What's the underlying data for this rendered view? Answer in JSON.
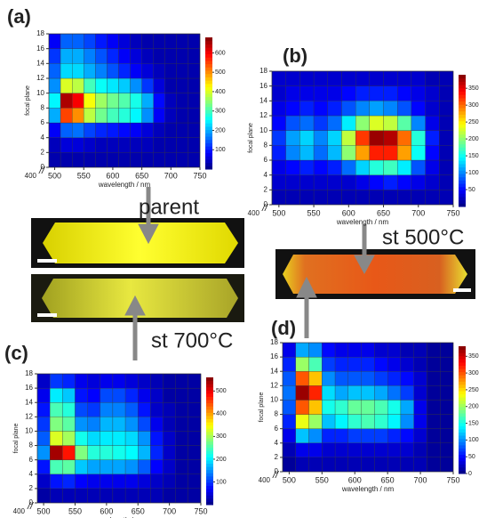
{
  "chart_data": [
    {
      "type": "heatmap",
      "panel": "(a)",
      "xlabel": "wavelength / nm",
      "ylabel": "focal plane",
      "colormap": "jet",
      "xlim": [
        490,
        750
      ],
      "xticks": [
        500,
        550,
        600,
        650,
        700,
        750
      ],
      "xbreak": 400,
      "ylim": [
        0,
        18
      ],
      "yticks": [
        0,
        2,
        4,
        6,
        8,
        10,
        12,
        14,
        16,
        18
      ],
      "clim": [
        0,
        680
      ],
      "cticks": [
        100,
        200,
        300,
        400,
        500,
        600
      ],
      "xbins": [
        490,
        510,
        530,
        550,
        570,
        590,
        610,
        630,
        650,
        670,
        690,
        710,
        730,
        750
      ],
      "ybins": [
        0,
        2,
        4,
        6,
        8,
        10,
        12,
        14,
        16,
        18
      ],
      "values": [
        [
          30,
          30,
          30,
          30,
          30,
          30,
          30,
          30,
          30,
          30,
          30,
          30,
          30
        ],
        [
          40,
          60,
          60,
          50,
          40,
          40,
          40,
          40,
          40,
          30,
          30,
          30,
          30
        ],
        [
          80,
          150,
          160,
          130,
          110,
          100,
          90,
          80,
          60,
          40,
          30,
          30,
          30
        ],
        [
          200,
          550,
          500,
          380,
          330,
          300,
          280,
          250,
          180,
          80,
          40,
          30,
          30
        ],
        [
          250,
          650,
          600,
          420,
          360,
          330,
          310,
          270,
          200,
          90,
          40,
          30,
          30
        ],
        [
          180,
          400,
          380,
          300,
          260,
          240,
          220,
          180,
          120,
          60,
          30,
          30,
          30
        ],
        [
          150,
          230,
          230,
          200,
          170,
          140,
          110,
          80,
          60,
          40,
          30,
          30,
          30
        ],
        [
          120,
          200,
          200,
          170,
          140,
          110,
          80,
          60,
          40,
          30,
          30,
          30,
          30
        ],
        [
          80,
          150,
          150,
          130,
          100,
          80,
          60,
          40,
          30,
          30,
          30,
          30,
          30
        ]
      ]
    },
    {
      "type": "heatmap",
      "panel": "(b)",
      "xlabel": "wavelength / nm",
      "ylabel": "focal plane",
      "colormap": "jet",
      "xlim": [
        490,
        750
      ],
      "xticks": [
        500,
        550,
        600,
        650,
        700,
        750
      ],
      "xbreak": 400,
      "ylim": [
        0,
        18
      ],
      "yticks": [
        0,
        2,
        4,
        6,
        8,
        10,
        12,
        14,
        16,
        18
      ],
      "clim": [
        0,
        390
      ],
      "cticks": [
        50,
        100,
        150,
        200,
        250,
        300,
        350
      ],
      "xbins": [
        490,
        510,
        530,
        550,
        570,
        590,
        610,
        630,
        650,
        670,
        690,
        710,
        730,
        750
      ],
      "ybins": [
        0,
        2,
        4,
        6,
        8,
        10,
        12,
        14,
        16,
        18
      ],
      "values": [
        [
          20,
          20,
          20,
          20,
          20,
          20,
          20,
          20,
          20,
          20,
          20,
          20,
          20
        ],
        [
          30,
          30,
          30,
          30,
          30,
          30,
          40,
          50,
          60,
          50,
          40,
          30,
          20
        ],
        [
          40,
          50,
          60,
          50,
          60,
          90,
          130,
          160,
          170,
          140,
          80,
          40,
          20
        ],
        [
          60,
          100,
          120,
          90,
          120,
          200,
          280,
          330,
          330,
          280,
          150,
          50,
          20
        ],
        [
          70,
          110,
          130,
          100,
          130,
          220,
          320,
          380,
          370,
          300,
          160,
          60,
          20
        ],
        [
          50,
          80,
          90,
          70,
          90,
          140,
          200,
          230,
          220,
          180,
          100,
          40,
          20
        ],
        [
          40,
          50,
          60,
          50,
          60,
          80,
          100,
          110,
          100,
          80,
          50,
          30,
          20
        ],
        [
          30,
          40,
          40,
          40,
          40,
          50,
          60,
          60,
          60,
          50,
          40,
          30,
          20
        ],
        [
          30,
          30,
          30,
          30,
          30,
          30,
          30,
          30,
          30,
          30,
          30,
          20,
          20
        ]
      ]
    },
    {
      "type": "heatmap",
      "panel": "(c)",
      "xlabel": "wavelength / nm",
      "ylabel": "focal plane",
      "colormap": "jet",
      "xlim": [
        490,
        750
      ],
      "xticks": [
        500,
        550,
        600,
        650,
        700,
        750
      ],
      "xbreak": 400,
      "ylim": [
        0,
        18
      ],
      "yticks": [
        0,
        2,
        4,
        6,
        8,
        10,
        12,
        14,
        16,
        18
      ],
      "clim": [
        0,
        560
      ],
      "cticks": [
        100,
        200,
        300,
        400,
        500
      ],
      "xbins": [
        490,
        510,
        530,
        550,
        570,
        590,
        610,
        630,
        650,
        670,
        690,
        710,
        730,
        750
      ],
      "ybins": [
        0,
        2,
        4,
        6,
        8,
        10,
        12,
        14,
        16,
        18
      ],
      "values": [
        [
          20,
          30,
          30,
          30,
          30,
          30,
          30,
          30,
          30,
          30,
          20,
          20,
          20
        ],
        [
          40,
          80,
          90,
          70,
          60,
          60,
          60,
          60,
          50,
          40,
          30,
          20,
          20
        ],
        [
          80,
          250,
          260,
          180,
          160,
          160,
          160,
          150,
          120,
          70,
          40,
          20,
          20
        ],
        [
          150,
          540,
          480,
          280,
          230,
          230,
          220,
          210,
          170,
          90,
          40,
          20,
          20
        ],
        [
          120,
          330,
          300,
          220,
          190,
          200,
          200,
          190,
          150,
          80,
          40,
          20,
          20
        ],
        [
          100,
          280,
          260,
          150,
          140,
          170,
          170,
          150,
          110,
          60,
          30,
          20,
          20
        ],
        [
          80,
          250,
          230,
          110,
          100,
          140,
          140,
          120,
          80,
          40,
          30,
          20,
          20
        ],
        [
          60,
          200,
          180,
          80,
          70,
          110,
          110,
          90,
          60,
          40,
          20,
          20,
          20
        ],
        [
          40,
          100,
          90,
          60,
          50,
          60,
          60,
          50,
          40,
          30,
          20,
          20,
          20
        ]
      ]
    },
    {
      "type": "heatmap",
      "panel": "(d)",
      "xlabel": "wavelength / nm",
      "ylabel": "focal plane",
      "colormap": "jet",
      "xlim": [
        490,
        750
      ],
      "xticks": [
        500,
        550,
        600,
        650,
        700,
        750
      ],
      "xbreak": 400,
      "ylim": [
        0,
        18
      ],
      "yticks": [
        0,
        2,
        4,
        6,
        8,
        10,
        12,
        14,
        16,
        18
      ],
      "clim": [
        0,
        380
      ],
      "cticks": [
        0,
        50,
        100,
        150,
        200,
        250,
        300,
        350
      ],
      "xbins": [
        490,
        510,
        530,
        550,
        570,
        590,
        610,
        630,
        650,
        670,
        690,
        710,
        730,
        750
      ],
      "ybins": [
        0,
        2,
        4,
        6,
        8,
        10,
        12,
        14,
        16,
        18
      ],
      "values": [
        [
          10,
          20,
          20,
          20,
          20,
          20,
          20,
          20,
          20,
          20,
          20,
          10,
          10
        ],
        [
          20,
          40,
          40,
          30,
          30,
          30,
          30,
          30,
          30,
          30,
          20,
          10,
          10
        ],
        [
          40,
          120,
          100,
          60,
          60,
          70,
          70,
          70,
          60,
          50,
          30,
          10,
          10
        ],
        [
          60,
          230,
          200,
          120,
          140,
          160,
          170,
          160,
          140,
          100,
          40,
          10,
          10
        ],
        [
          80,
          300,
          260,
          150,
          160,
          180,
          180,
          170,
          150,
          110,
          40,
          10,
          10
        ],
        [
          90,
          370,
          320,
          130,
          110,
          120,
          120,
          110,
          90,
          70,
          30,
          10,
          10
        ],
        [
          80,
          300,
          260,
          100,
          80,
          80,
          80,
          70,
          60,
          50,
          30,
          10,
          10
        ],
        [
          60,
          200,
          170,
          70,
          60,
          60,
          60,
          50,
          40,
          30,
          20,
          10,
          10
        ],
        [
          40,
          110,
          100,
          50,
          40,
          40,
          40,
          30,
          30,
          20,
          20,
          10,
          10
        ]
      ]
    }
  ],
  "micrographs": [
    {
      "label": "parent"
    },
    {
      "label": "st 700°C"
    },
    {
      "label": "st 500°C"
    }
  ]
}
